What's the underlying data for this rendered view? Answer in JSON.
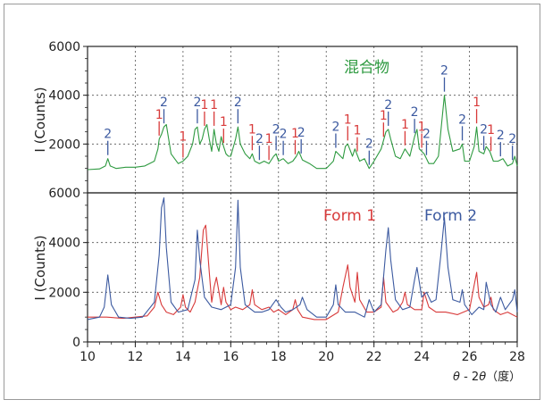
{
  "chart_data": [
    {
      "type": "line",
      "panel": "top",
      "ylabel": "I (Counts)",
      "xlim": [
        10,
        28
      ],
      "ylim": [
        0,
        6000
      ],
      "y_ticks": [
        2000,
        4000,
        6000
      ],
      "grid": true,
      "legend": [
        {
          "label": "混合物",
          "color": "#2e9a40"
        }
      ],
      "series": [
        {
          "name": "混合物",
          "color": "#2e9a40",
          "x": [
            10.0,
            10.5,
            10.75,
            10.85,
            10.95,
            11.2,
            11.6,
            12.0,
            12.4,
            12.8,
            12.95,
            13.0,
            13.1,
            13.2,
            13.3,
            13.5,
            13.8,
            14.0,
            14.2,
            14.4,
            14.5,
            14.6,
            14.7,
            14.8,
            14.9,
            15.0,
            15.1,
            15.2,
            15.3,
            15.4,
            15.5,
            15.6,
            15.7,
            15.8,
            15.9,
            16.0,
            16.2,
            16.3,
            16.4,
            16.6,
            16.8,
            16.9,
            17.0,
            17.2,
            17.4,
            17.6,
            17.8,
            17.9,
            18.0,
            18.2,
            18.4,
            18.6,
            18.75,
            18.85,
            19.0,
            19.3,
            19.6,
            20.0,
            20.3,
            20.4,
            20.5,
            20.7,
            20.8,
            20.9,
            21.1,
            21.2,
            21.4,
            21.6,
            21.8,
            22.0,
            22.3,
            22.5,
            22.6,
            22.7,
            22.9,
            23.1,
            23.3,
            23.5,
            23.7,
            23.8,
            23.9,
            24.1,
            24.3,
            24.5,
            24.7,
            24.85,
            24.95,
            25.1,
            25.3,
            25.6,
            25.7,
            25.8,
            26.0,
            26.2,
            26.3,
            26.4,
            26.6,
            26.7,
            26.85,
            27.0,
            27.2,
            27.4,
            27.6,
            27.8,
            27.9,
            28.0
          ],
          "y": [
            950,
            980,
            1100,
            1400,
            1100,
            1000,
            1050,
            1050,
            1100,
            1300,
            1800,
            2200,
            2400,
            2700,
            2800,
            1600,
            1200,
            1300,
            1500,
            2000,
            2600,
            2700,
            2000,
            2200,
            2600,
            2800,
            2200,
            1700,
            2600,
            2000,
            1700,
            2300,
            1900,
            1600,
            1500,
            1500,
            2200,
            2700,
            2000,
            1600,
            1400,
            1600,
            1300,
            1200,
            1300,
            1200,
            1500,
            1600,
            1300,
            1400,
            1200,
            1300,
            1500,
            1700,
            1350,
            1200,
            1000,
            1000,
            1300,
            1700,
            1600,
            1400,
            1900,
            2000,
            1500,
            1800,
            1300,
            1400,
            1000,
            1300,
            1800,
            2500,
            2600,
            2200,
            1500,
            1400,
            1800,
            1500,
            2300,
            2600,
            1800,
            1600,
            1200,
            1200,
            1500,
            3000,
            4000,
            2600,
            1700,
            1800,
            2000,
            1300,
            1300,
            1900,
            2700,
            1700,
            1600,
            1900,
            1700,
            1300,
            1300,
            1400,
            1100,
            1200,
            1500,
            1100
          ]
        }
      ],
      "annotations": [
        {
          "x": 10.85,
          "label": "2",
          "color": "#3c5aa0"
        },
        {
          "x": 13.0,
          "label": "1",
          "color": "#d83a3a"
        },
        {
          "x": 13.2,
          "label": "2",
          "color": "#3c5aa0"
        },
        {
          "x": 14.0,
          "label": "1",
          "color": "#d83a3a"
        },
        {
          "x": 14.6,
          "label": "2",
          "color": "#3c5aa0"
        },
        {
          "x": 14.9,
          "label": "1",
          "color": "#d83a3a"
        },
        {
          "x": 15.3,
          "label": "1",
          "color": "#d83a3a"
        },
        {
          "x": 15.7,
          "label": "1",
          "color": "#d83a3a"
        },
        {
          "x": 16.3,
          "label": "2",
          "color": "#3c5aa0"
        },
        {
          "x": 16.9,
          "label": "1",
          "color": "#d83a3a"
        },
        {
          "x": 17.2,
          "label": "2",
          "color": "#3c5aa0"
        },
        {
          "x": 17.6,
          "label": "1",
          "color": "#d83a3a"
        },
        {
          "x": 17.9,
          "label": "2",
          "color": "#3c5aa0"
        },
        {
          "x": 18.2,
          "label": "2",
          "color": "#3c5aa0"
        },
        {
          "x": 18.7,
          "label": "1",
          "color": "#d83a3a"
        },
        {
          "x": 18.95,
          "label": "2",
          "color": "#3c5aa0"
        },
        {
          "x": 20.4,
          "label": "2",
          "color": "#3c5aa0"
        },
        {
          "x": 20.9,
          "label": "1",
          "color": "#d83a3a"
        },
        {
          "x": 21.3,
          "label": "1",
          "color": "#d83a3a"
        },
        {
          "x": 21.8,
          "label": "2",
          "color": "#3c5aa0"
        },
        {
          "x": 22.4,
          "label": "1",
          "color": "#d83a3a"
        },
        {
          "x": 22.6,
          "label": "2",
          "color": "#3c5aa0"
        },
        {
          "x": 23.3,
          "label": "1",
          "color": "#d83a3a"
        },
        {
          "x": 23.7,
          "label": "2",
          "color": "#3c5aa0"
        },
        {
          "x": 24.0,
          "label": "1",
          "color": "#d83a3a"
        },
        {
          "x": 24.2,
          "label": "2",
          "color": "#3c5aa0"
        },
        {
          "x": 24.95,
          "label": "2",
          "color": "#3c5aa0"
        },
        {
          "x": 25.7,
          "label": "2",
          "color": "#3c5aa0"
        },
        {
          "x": 26.3,
          "label": "1",
          "color": "#d83a3a"
        },
        {
          "x": 26.6,
          "label": "2",
          "color": "#3c5aa0"
        },
        {
          "x": 26.9,
          "label": "1",
          "color": "#d83a3a"
        },
        {
          "x": 27.3,
          "label": "2",
          "color": "#3c5aa0"
        },
        {
          "x": 27.8,
          "label": "2",
          "color": "#3c5aa0"
        }
      ]
    },
    {
      "type": "line",
      "panel": "bottom",
      "ylabel": "I (Counts)",
      "xlabel_var": "θ",
      "xlabel_rest": " - 2",
      "xlabel_var2": "θ",
      "xlabel_unit": "（度）",
      "xlim": [
        10,
        28
      ],
      "ylim": [
        0,
        6000
      ],
      "x_ticks": [
        10,
        12,
        14,
        16,
        18,
        20,
        22,
        24,
        26,
        28
      ],
      "y_ticks": [
        0,
        2000,
        4000,
        6000
      ],
      "grid": true,
      "legend": [
        {
          "label": "Form 1",
          "color": "#d83a3a"
        },
        {
          "label": "Form 2",
          "color": "#3c5aa0"
        }
      ],
      "series": [
        {
          "name": "Form 1",
          "color": "#d83a3a",
          "x": [
            10.0,
            10.8,
            11.5,
            12.0,
            12.5,
            12.8,
            12.95,
            13.1,
            13.3,
            13.6,
            13.9,
            14.0,
            14.1,
            14.3,
            14.5,
            14.7,
            14.85,
            14.95,
            15.1,
            15.2,
            15.3,
            15.4,
            15.6,
            15.7,
            15.8,
            16.0,
            16.2,
            16.5,
            16.8,
            16.9,
            17.0,
            17.3,
            17.6,
            17.8,
            18.0,
            18.3,
            18.6,
            18.7,
            18.8,
            19.0,
            19.5,
            20.0,
            20.5,
            20.7,
            20.9,
            21.0,
            21.2,
            21.3,
            21.4,
            21.7,
            22.0,
            22.3,
            22.4,
            22.5,
            22.8,
            23.0,
            23.2,
            23.3,
            23.4,
            23.7,
            24.0,
            24.1,
            24.3,
            24.6,
            25.0,
            25.5,
            26.0,
            26.2,
            26.3,
            26.4,
            26.6,
            26.8,
            26.9,
            27.0,
            27.3,
            27.6,
            28.0
          ],
          "y": [
            1000,
            1000,
            950,
            1000,
            1050,
            1400,
            2000,
            1500,
            1200,
            1100,
            1400,
            1900,
            1400,
            1200,
            1600,
            2600,
            4500,
            4700,
            2800,
            1600,
            2200,
            2600,
            1500,
            2200,
            1600,
            1300,
            1400,
            1300,
            1500,
            2100,
            1500,
            1300,
            1400,
            1200,
            1300,
            1100,
            1300,
            1700,
            1300,
            1000,
            900,
            900,
            1200,
            2200,
            3100,
            2200,
            1600,
            2800,
            1700,
            1200,
            1200,
            1400,
            2600,
            1600,
            1200,
            1300,
            1600,
            2000,
            1500,
            1300,
            1300,
            2000,
            1400,
            1200,
            1200,
            1100,
            1300,
            2300,
            2800,
            1800,
            1400,
            1500,
            1800,
            1300,
            1100,
            1200,
            1000
          ]
        },
        {
          "name": "Form 2",
          "color": "#3c5aa0",
          "x": [
            10.0,
            10.5,
            10.7,
            10.85,
            11.0,
            11.3,
            11.8,
            12.3,
            12.8,
            13.0,
            13.1,
            13.2,
            13.3,
            13.5,
            13.8,
            14.2,
            14.5,
            14.6,
            14.7,
            14.9,
            15.2,
            15.6,
            16.0,
            16.2,
            16.3,
            16.4,
            16.6,
            17.0,
            17.3,
            17.6,
            17.9,
            18.1,
            18.3,
            18.6,
            18.9,
            19.0,
            19.2,
            19.6,
            20.0,
            20.3,
            20.4,
            20.5,
            20.8,
            21.2,
            21.6,
            21.8,
            22.0,
            22.3,
            22.5,
            22.6,
            22.7,
            22.9,
            23.2,
            23.5,
            23.7,
            23.8,
            24.0,
            24.2,
            24.4,
            24.6,
            24.8,
            24.95,
            25.1,
            25.3,
            25.6,
            25.7,
            25.8,
            26.1,
            26.4,
            26.6,
            26.7,
            26.9,
            27.1,
            27.3,
            27.5,
            27.8,
            27.9,
            28.0
          ],
          "y": [
            900,
            1000,
            1400,
            2700,
            1500,
            1000,
            950,
            1000,
            1600,
            3500,
            5400,
            5800,
            3800,
            1600,
            1200,
            1300,
            2500,
            4500,
            3300,
            1800,
            1400,
            1300,
            1500,
            3000,
            5700,
            3000,
            1500,
            1200,
            1200,
            1300,
            1700,
            1400,
            1200,
            1300,
            1500,
            1800,
            1300,
            1000,
            1000,
            1500,
            2300,
            1500,
            1200,
            1200,
            1000,
            1700,
            1200,
            1500,
            3700,
            4600,
            3300,
            1700,
            1300,
            1400,
            2500,
            3000,
            1800,
            2000,
            1600,
            1700,
            3500,
            5000,
            3000,
            1700,
            1600,
            2100,
            1500,
            1100,
            1400,
            1300,
            2400,
            1500,
            1200,
            1800,
            1300,
            1700,
            2100,
            1200
          ]
        }
      ]
    }
  ]
}
